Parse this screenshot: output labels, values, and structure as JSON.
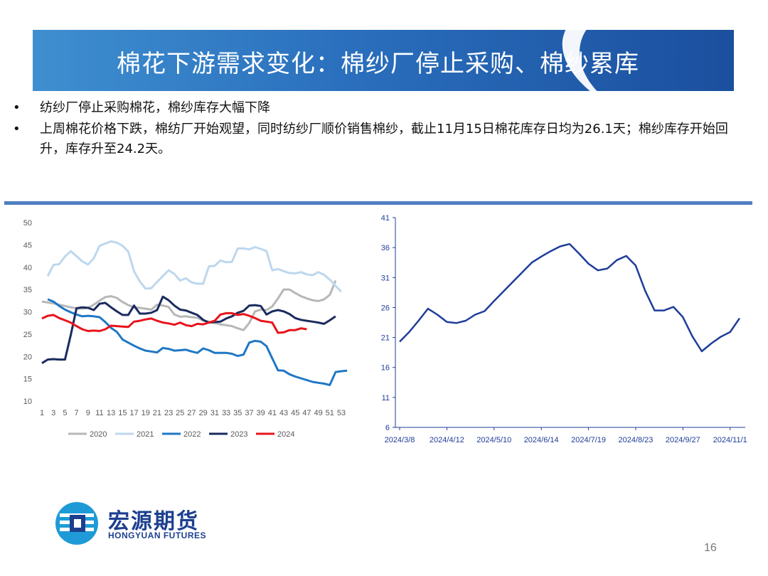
{
  "header": {
    "title": "棉花下游需求变化：棉纱厂停止采购、棉纱累库"
  },
  "bullets": [
    {
      "marker": "•",
      "text": "纺纱厂停止采购棉花，棉纱库存大幅下降"
    },
    {
      "marker": "•",
      "text": "上周棉花价格下跌，棉纺厂开始观望，同时纺纱厂顺价销售棉纱，截止11月15日棉花库存日均为26.1天；棉纱库存开始回升，库存升至24.2天。"
    }
  ],
  "logo": {
    "cn": "宏源期货",
    "en": "HONGYUAN FUTURES"
  },
  "page_number": "16",
  "colors": {
    "s2020": "#b7b7b7",
    "s2021": "#bdd7ee",
    "s2022": "#1f77c4",
    "s2023": "#1a2b5e",
    "s2024": "#e8141b",
    "right": "#1f3d99",
    "divider": "#4f7fc1"
  },
  "chart_data": [
    {
      "type": "line",
      "title": "",
      "xlabel": "",
      "ylabel": "",
      "ylim": [
        10,
        50
      ],
      "yticks": [
        10,
        15,
        20,
        25,
        30,
        35,
        40,
        45,
        50
      ],
      "xlim": [
        1,
        53
      ],
      "xticks": [
        1,
        3,
        5,
        7,
        9,
        11,
        13,
        15,
        17,
        19,
        21,
        23,
        25,
        27,
        29,
        31,
        33,
        35,
        37,
        39,
        41,
        43,
        45,
        47,
        49,
        51,
        53
      ],
      "legend_position": "bottom",
      "series": [
        {
          "name": "2020",
          "color": "#b7b7b7",
          "x_start": 1,
          "values": [
            32.3,
            32.1,
            31.9,
            31.6,
            31.3,
            31.0,
            30.8,
            30.7,
            30.9,
            31.6,
            32.5,
            33.3,
            33.5,
            33.1,
            32.2,
            31.5,
            31.0,
            30.9,
            30.7,
            30.5,
            31.6,
            31.4,
            31.1,
            29.4,
            28.9,
            29.0,
            28.8,
            28.7,
            28.0,
            27.8,
            27.5,
            27.2,
            27.0,
            26.8,
            26.3,
            25.9,
            27.5,
            30.1,
            30.5,
            30.4,
            31.2,
            33.0,
            35.0,
            35.0,
            34.2,
            33.5,
            33.0,
            32.6,
            32.4,
            32.8,
            33.8,
            37.0
          ]
        },
        {
          "name": "2021",
          "color": "#bdd7ee",
          "x_start": 2,
          "values": [
            38.0,
            40.5,
            40.7,
            42.4,
            43.6,
            42.5,
            41.3,
            40.6,
            42.0,
            44.8,
            45.3,
            45.8,
            45.5,
            44.8,
            43.5,
            39.1,
            36.8,
            35.2,
            35.3,
            36.7,
            38.0,
            39.3,
            38.5,
            37.0,
            37.5,
            36.6,
            36.3,
            36.3,
            40.2,
            40.3,
            41.5,
            41.1,
            41.2,
            44.2,
            44.2,
            44.0,
            44.5,
            44.1,
            43.6,
            39.3,
            39.6,
            39.1,
            38.7,
            38.6,
            38.9,
            38.4,
            38.2,
            38.9,
            38.3,
            37.2,
            35.8,
            34.5
          ]
        },
        {
          "name": "2022",
          "color": "#1f77c4",
          "x_start": 2,
          "values": [
            32.8,
            32.3,
            31.3,
            30.5,
            29.9,
            29.4,
            29.0,
            29.1,
            29.0,
            28.8,
            27.7,
            26.4,
            25.5,
            23.8,
            23.1,
            22.4,
            21.8,
            21.3,
            21.1,
            20.9,
            21.9,
            21.7,
            21.3,
            21.4,
            21.5,
            21.1,
            20.8,
            21.8,
            21.4,
            20.8,
            20.8,
            20.8,
            20.6,
            20.1,
            20.4,
            23.1,
            23.5,
            23.3,
            22.3,
            19.6,
            16.9,
            16.8,
            16.0,
            15.5,
            15.1,
            14.7,
            14.3,
            14.1,
            13.9,
            13.6,
            16.5,
            16.7,
            16.8
          ]
        },
        {
          "name": "2023",
          "color": "#1a2b5e",
          "x_start": 1,
          "values": [
            18.5,
            19.3,
            19.4,
            19.3,
            19.3,
            24.8,
            30.8,
            31.0,
            30.9,
            30.4,
            31.8,
            32.0,
            31.0,
            30.1,
            29.3,
            29.3,
            31.4,
            29.6,
            29.6,
            29.8,
            30.4,
            33.4,
            32.6,
            31.4,
            30.5,
            30.3,
            29.8,
            29.3,
            28.2,
            27.6,
            27.7,
            27.8,
            28.5,
            29.0,
            29.8,
            30.2,
            31.4,
            31.5,
            31.3,
            29.4,
            30.1,
            30.4,
            30.1,
            29.5,
            28.6,
            28.2,
            28.0,
            27.8,
            27.6,
            27.3,
            28.1,
            29.0
          ]
        },
        {
          "name": "2024",
          "color": "#e8141b",
          "x_start": 1,
          "values": [
            28.5,
            29.1,
            29.3,
            28.6,
            28.1,
            27.6,
            26.8,
            26.1,
            25.7,
            25.8,
            25.7,
            26.1,
            26.9,
            26.8,
            26.7,
            26.6,
            27.8,
            28.0,
            28.3,
            28.5,
            28.0,
            27.6,
            27.4,
            27.1,
            27.6,
            27.0,
            26.8,
            27.3,
            27.2,
            27.6,
            28.0,
            29.4,
            29.7,
            29.7,
            29.3,
            29.5,
            29.1,
            28.6,
            28.0,
            27.8,
            27.6,
            25.3,
            25.4,
            25.9,
            25.9,
            26.3,
            26.1
          ]
        }
      ]
    },
    {
      "type": "line",
      "title": "",
      "xlabel": "",
      "ylabel": "",
      "ylim": [
        6,
        41
      ],
      "yticks": [
        6,
        11,
        16,
        21,
        26,
        31,
        36,
        41
      ],
      "tick_labels": [
        "2024/3/8",
        "2024/4/12",
        "2024/5/10",
        "2024/6/14",
        "2024/7/19",
        "2024/8/23",
        "2024/9/27",
        "2024/11/1"
      ],
      "label_every": 5,
      "series": [
        {
          "name": "棉纱库存",
          "color": "#1f3d99",
          "values": [
            20.3,
            21.9,
            23.8,
            25.8,
            24.8,
            23.6,
            23.4,
            23.8,
            24.8,
            25.4,
            27.1,
            28.7,
            30.3,
            31.9,
            33.5,
            34.5,
            35.4,
            36.2,
            36.6,
            35.0,
            33.3,
            32.2,
            32.5,
            33.9,
            34.6,
            33.0,
            28.8,
            25.5,
            25.5,
            26.1,
            24.4,
            21.2,
            18.7,
            20.0,
            21.1,
            21.9,
            24.2
          ]
        }
      ]
    }
  ]
}
